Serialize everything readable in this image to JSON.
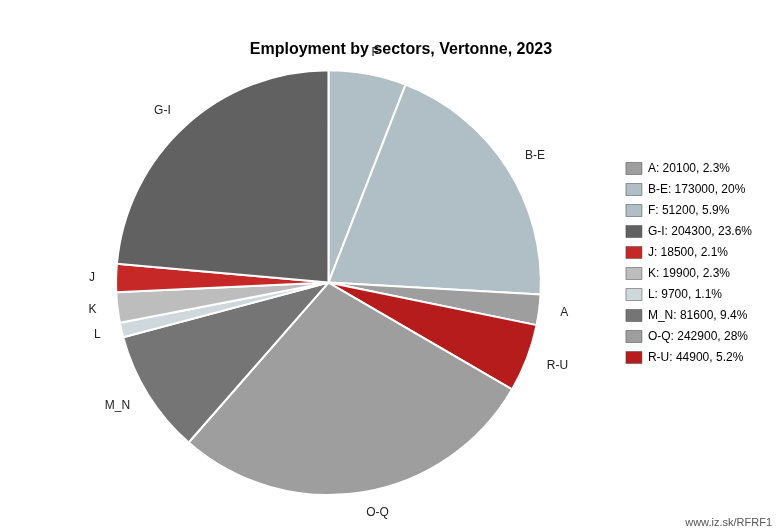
{
  "chart_data": {
    "type": "pie",
    "title": "Employment by sectors, Vertonne, 2023",
    "categories": [
      "F",
      "B-E",
      "A",
      "R-U",
      "O-Q",
      "M_N",
      "L",
      "K",
      "J",
      "G-I"
    ],
    "values": [
      51200,
      173000,
      20100,
      44900,
      242900,
      81600,
      9700,
      19900,
      18500,
      204300
    ],
    "colors": [
      "#b0bec5",
      "#b0bec5",
      "#9e9e9e",
      "#b71c1c",
      "#9e9e9e",
      "#757575",
      "#cfd8dc",
      "#bdbdbd",
      "#c62828",
      "#616161"
    ],
    "legend": "right",
    "legend_labels": [
      "A: 20100, 2.3%",
      "B-E: 173000, 20%",
      "F: 51200, 5.9%",
      "G-I: 204300, 23.6%",
      "J: 18500, 2.1%",
      "K: 19900, 2.3%",
      "L: 9700, 1.1%",
      "M_N: 81600, 9.4%",
      "O-Q: 242900, 28%",
      "R-U: 44900, 5.2%"
    ],
    "legend_colors": [
      "#9e9e9e",
      "#b0bec5",
      "#b0bec5",
      "#616161",
      "#c62828",
      "#bdbdbd",
      "#cfd8dc",
      "#757575",
      "#9e9e9e",
      "#b71c1c"
    ],
    "annotations": [
      "www.iz.sk/RFRF1"
    ]
  }
}
